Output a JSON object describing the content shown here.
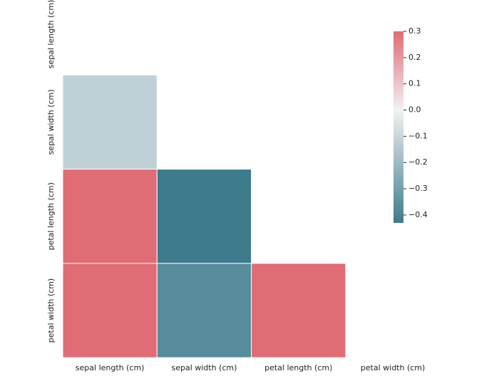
{
  "chart_data": {
    "type": "heatmap",
    "x_categories": [
      "sepal length (cm)",
      "sepal width (cm)",
      "petal length (cm)",
      "petal width (cm)"
    ],
    "y_categories": [
      "sepal length (cm)",
      "sepal width (cm)",
      "petal length (cm)",
      "petal width (cm)"
    ],
    "values": [
      [
        null,
        null,
        null,
        null
      ],
      [
        -0.12,
        null,
        null,
        null
      ],
      [
        0.87,
        -0.43,
        null,
        null
      ],
      [
        0.82,
        -0.37,
        0.96,
        null
      ]
    ],
    "colors": [
      "#3d7b8d",
      "#f2f2f2",
      "#e06c75"
    ],
    "colorbar_lim": [
      -0.43,
      0.3
    ],
    "colorbar_ticks": [
      0.3,
      0.2,
      0.1,
      {
        "value": 0.0,
        "label": "0.0"
      },
      {
        "value": -0.1,
        "label": "−0.1"
      },
      {
        "value": -0.2,
        "label": "−0.2"
      },
      {
        "value": -0.3,
        "label": "−0.3"
      },
      {
        "value": -0.4,
        "label": "−0.4"
      }
    ]
  }
}
